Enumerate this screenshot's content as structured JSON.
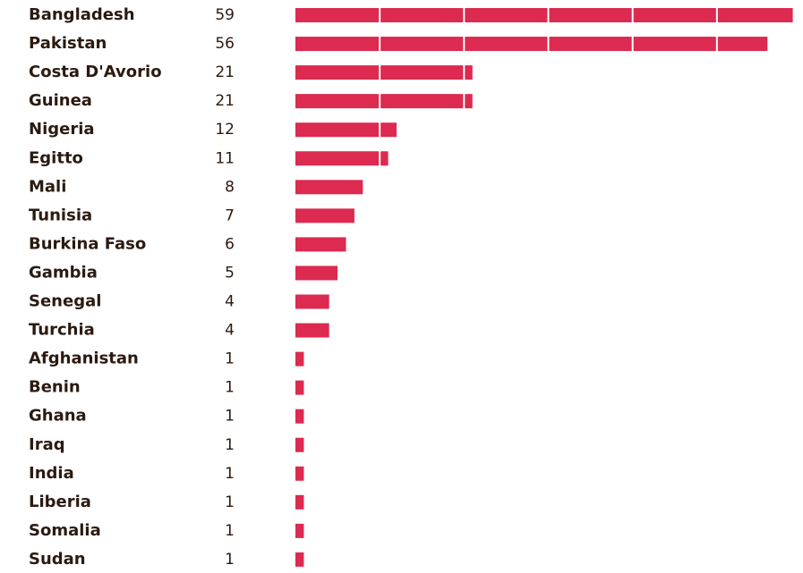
{
  "chart_data": {
    "type": "bar",
    "orientation": "horizontal",
    "categories": [
      "Bangladesh",
      "Pakistan",
      "Costa D'Avorio",
      "Guinea",
      "Nigeria",
      "Egitto",
      "Mali",
      "Tunisia",
      "Burkina Faso",
      "Gambia",
      "Senegal",
      "Turchia",
      "Afghanistan",
      "Benin",
      "Ghana",
      "Iraq",
      "India",
      "Liberia",
      "Somalia",
      "Sudan"
    ],
    "values": [
      59,
      56,
      21,
      21,
      12,
      11,
      8,
      7,
      6,
      5,
      4,
      4,
      1,
      1,
      1,
      1,
      1,
      1,
      1,
      1
    ],
    "color": "#dc2a50",
    "xlim": [
      0,
      60
    ],
    "xticks": [
      10,
      20,
      30,
      40,
      50
    ],
    "grid": true
  }
}
